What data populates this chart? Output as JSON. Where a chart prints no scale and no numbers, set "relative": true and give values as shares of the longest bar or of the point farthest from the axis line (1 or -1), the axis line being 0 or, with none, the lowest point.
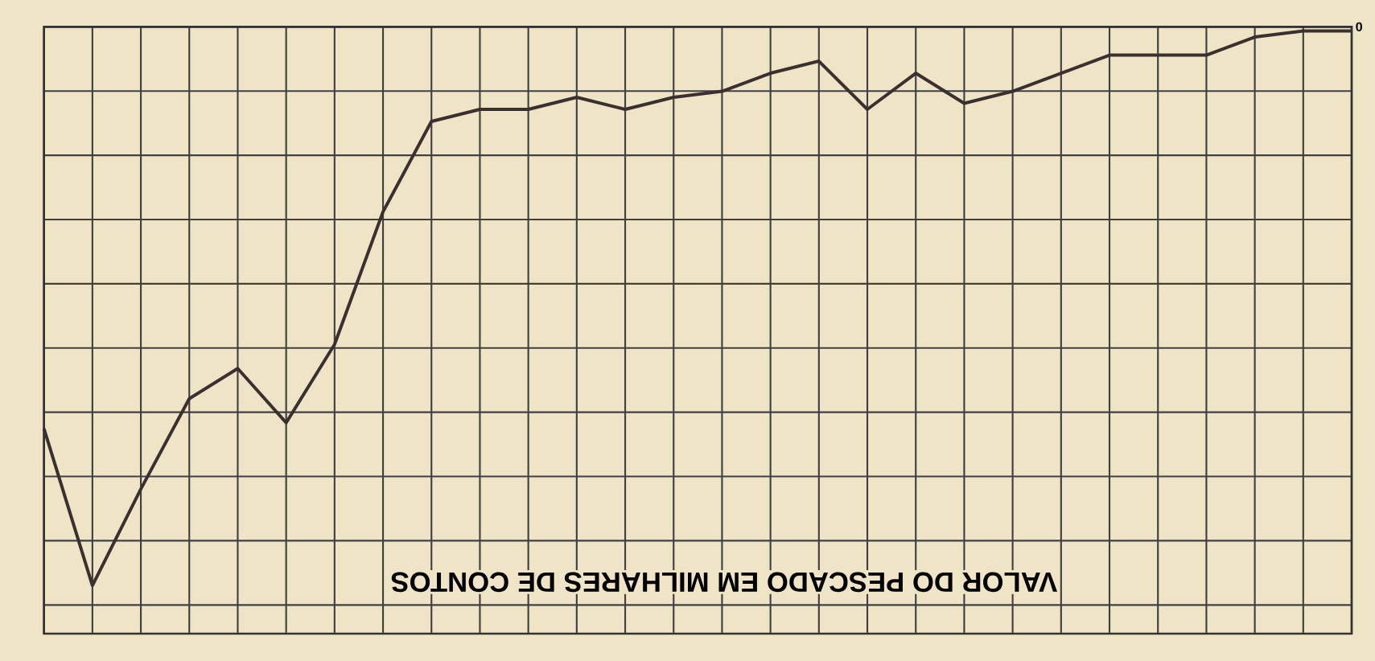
{
  "chart_data": {
    "type": "line",
    "relative": true,
    "grid": true,
    "color": "#3a3030",
    "marker": "none",
    "line_style": "solid",
    "categories": [
      null,
      null,
      null,
      null,
      null,
      null,
      null,
      null,
      null,
      null,
      null,
      null,
      null,
      null,
      null,
      null,
      null,
      null,
      null,
      null,
      null,
      null,
      null,
      null,
      null,
      null,
      null,
      null
    ],
    "values": [
      0.34,
      0.08,
      0.24,
      0.39,
      0.44,
      0.35,
      0.48,
      0.7,
      0.85,
      0.87,
      0.87,
      0.89,
      0.87,
      0.89,
      0.9,
      0.93,
      0.95,
      0.87,
      0.93,
      0.88,
      0.9,
      0.93,
      0.96,
      0.96,
      0.96,
      0.99,
      1.0,
      1.0
    ],
    "annotations": [
      "VALOR DO PESCADO EM MILHARES DE CONTOS",
      "0"
    ]
  }
}
